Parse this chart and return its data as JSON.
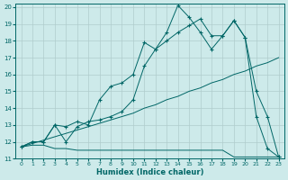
{
  "xlabel": "Humidex (Indice chaleur)",
  "bg_color": "#cdeaea",
  "grid_color": "#b0cccc",
  "line_color": "#006666",
  "xlim": [
    -0.5,
    23.5
  ],
  "ylim": [
    11,
    20.2
  ],
  "xticks": [
    0,
    1,
    2,
    3,
    4,
    5,
    6,
    7,
    8,
    9,
    10,
    11,
    12,
    13,
    14,
    15,
    16,
    17,
    18,
    19,
    20,
    21,
    22,
    23
  ],
  "yticks": [
    11,
    12,
    13,
    14,
    15,
    16,
    17,
    18,
    19,
    20
  ],
  "line1_x": [
    0,
    1,
    2,
    3,
    4,
    5,
    6,
    7,
    8,
    9,
    10,
    11,
    12,
    13,
    14,
    15,
    16,
    17,
    18,
    19,
    20,
    21,
    22,
    23
  ],
  "line1_y": [
    11.7,
    11.8,
    11.8,
    11.6,
    11.6,
    11.5,
    11.5,
    11.5,
    11.5,
    11.5,
    11.5,
    11.5,
    11.5,
    11.5,
    11.5,
    11.5,
    11.5,
    11.5,
    11.5,
    11.1,
    11.1,
    11.1,
    11.1,
    11.1
  ],
  "line2_x": [
    0,
    1,
    2,
    3,
    4,
    5,
    6,
    7,
    8,
    9,
    10,
    11,
    12,
    13,
    14,
    15,
    16,
    17,
    18,
    19,
    20,
    21,
    22,
    23
  ],
  "line2_y": [
    11.7,
    11.9,
    12.1,
    12.3,
    12.5,
    12.7,
    12.9,
    13.1,
    13.3,
    13.5,
    13.7,
    14.0,
    14.2,
    14.5,
    14.7,
    15.0,
    15.2,
    15.5,
    15.7,
    16.0,
    16.2,
    16.5,
    16.7,
    17.0
  ],
  "line3_x": [
    0,
    1,
    2,
    3,
    4,
    5,
    6,
    7,
    8,
    9,
    10,
    11,
    12,
    13,
    14,
    15,
    16,
    17,
    18,
    19,
    20,
    21,
    22,
    23
  ],
  "line3_y": [
    11.7,
    12.0,
    12.0,
    13.0,
    12.9,
    13.2,
    13.0,
    14.5,
    15.3,
    15.5,
    16.0,
    17.9,
    17.5,
    18.5,
    20.1,
    19.4,
    18.5,
    17.5,
    18.3,
    19.2,
    18.2,
    13.5,
    11.6,
    11.1
  ],
  "line4_x": [
    0,
    1,
    2,
    3,
    4,
    5,
    6,
    7,
    8,
    9,
    10,
    11,
    12,
    13,
    14,
    15,
    16,
    17,
    18,
    19,
    20,
    21,
    22,
    23
  ],
  "line4_y": [
    11.7,
    12.0,
    12.0,
    13.0,
    12.0,
    12.9,
    13.2,
    13.3,
    13.5,
    13.8,
    14.5,
    16.5,
    17.5,
    18.0,
    18.5,
    18.9,
    19.3,
    18.3,
    18.3,
    19.2,
    18.2,
    15.0,
    13.5,
    11.1
  ]
}
